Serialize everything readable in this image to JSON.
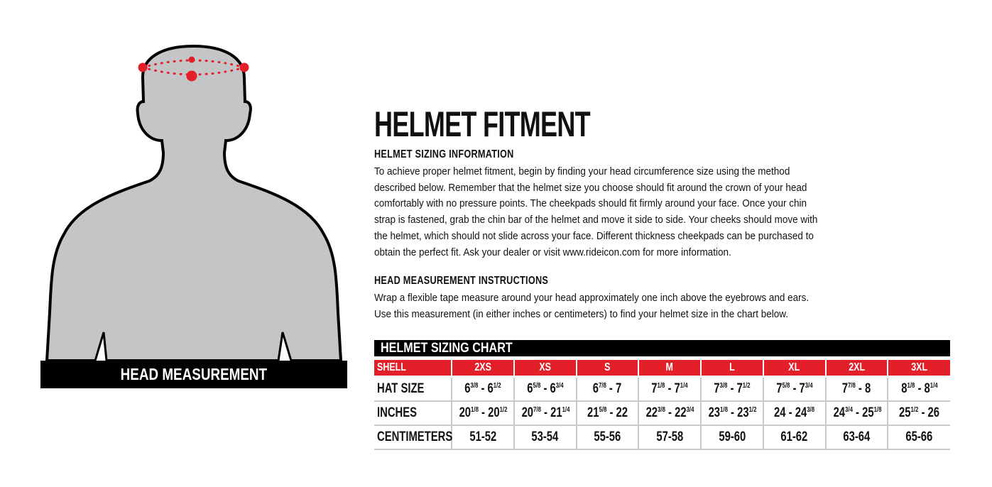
{
  "figure": {
    "caption": "HEAD MEASUREMENT",
    "colors": {
      "silhouette": "#c4c5c7",
      "outline": "#000000",
      "marker": "#e3202a"
    }
  },
  "title": "HELMET FITMENT",
  "sizing_info": {
    "heading": "HELMET SIZING INFORMATION",
    "lines": [
      "To achieve proper helmet fitment, begin by finding your head circumference size using the method",
      "described below. Remember that the helmet size you choose should fit around the crown of your head",
      "comfortably with no pressure points. The cheekpads should fit firmly around your face. Once your chin",
      "strap is fastened, grab the chin bar of the helmet and move it side to side. Your cheeks should move with",
      "the helmet, which should not slide across your face. Different thickness cheekpads can be purchased to",
      "obtain the perfect fit. Ask your dealer or visit www.rideicon.com for more information."
    ]
  },
  "measurement": {
    "heading": "HEAD MEASUREMENT INSTRUCTIONS",
    "lines": [
      "Wrap a flexible tape measure around your head approximately one inch above the eyebrows and ears.",
      "Use this measurement (in either inches or centimeters) to find your helmet size in the chart below."
    ]
  },
  "chart": {
    "title": "HELMET SIZING CHART",
    "header_color": "#e3202a",
    "shell_label": "SHELL",
    "shells": [
      "2XS",
      "XS",
      "S",
      "M",
      "L",
      "XL",
      "2XL",
      "3XL"
    ],
    "rows": [
      {
        "label": "HAT SIZE",
        "cells": [
          [
            [
              "6",
              "3/8"
            ],
            [
              "6",
              "1/2"
            ]
          ],
          [
            [
              "6",
              "5/8"
            ],
            [
              "6",
              "3/4"
            ]
          ],
          [
            [
              "6",
              "7/8"
            ],
            [
              "7",
              ""
            ]
          ],
          [
            [
              "7",
              "1/8"
            ],
            [
              "7",
              "1/4"
            ]
          ],
          [
            [
              "7",
              "3/8"
            ],
            [
              "7",
              "1/2"
            ]
          ],
          [
            [
              "7",
              "5/8"
            ],
            [
              "7",
              "3/4"
            ]
          ],
          [
            [
              "7",
              "7/8"
            ],
            [
              "8",
              ""
            ]
          ],
          [
            [
              "8",
              "1/8"
            ],
            [
              "8",
              "1/4"
            ]
          ]
        ]
      },
      {
        "label": "INCHES",
        "cells": [
          [
            [
              "20",
              "1/8"
            ],
            [
              "20",
              "1/2"
            ]
          ],
          [
            [
              "20",
              "7/8"
            ],
            [
              "21",
              "1/4"
            ]
          ],
          [
            [
              "21",
              "5/8"
            ],
            [
              "22",
              ""
            ]
          ],
          [
            [
              "22",
              "3/8"
            ],
            [
              "22",
              "3/4"
            ]
          ],
          [
            [
              "23",
              "1/8"
            ],
            [
              "23",
              "1/2"
            ]
          ],
          [
            [
              "24",
              ""
            ],
            [
              "24",
              "3/8"
            ]
          ],
          [
            [
              "24",
              "3/4"
            ],
            [
              "25",
              "1/8"
            ]
          ],
          [
            [
              "25",
              "1/2"
            ],
            [
              "26",
              ""
            ]
          ]
        ]
      },
      {
        "label": "CENTIMETERS",
        "cells": [
          "51-52",
          "53-54",
          "55-56",
          "57-58",
          "59-60",
          "61-62",
          "63-64",
          "65-66"
        ]
      }
    ]
  }
}
